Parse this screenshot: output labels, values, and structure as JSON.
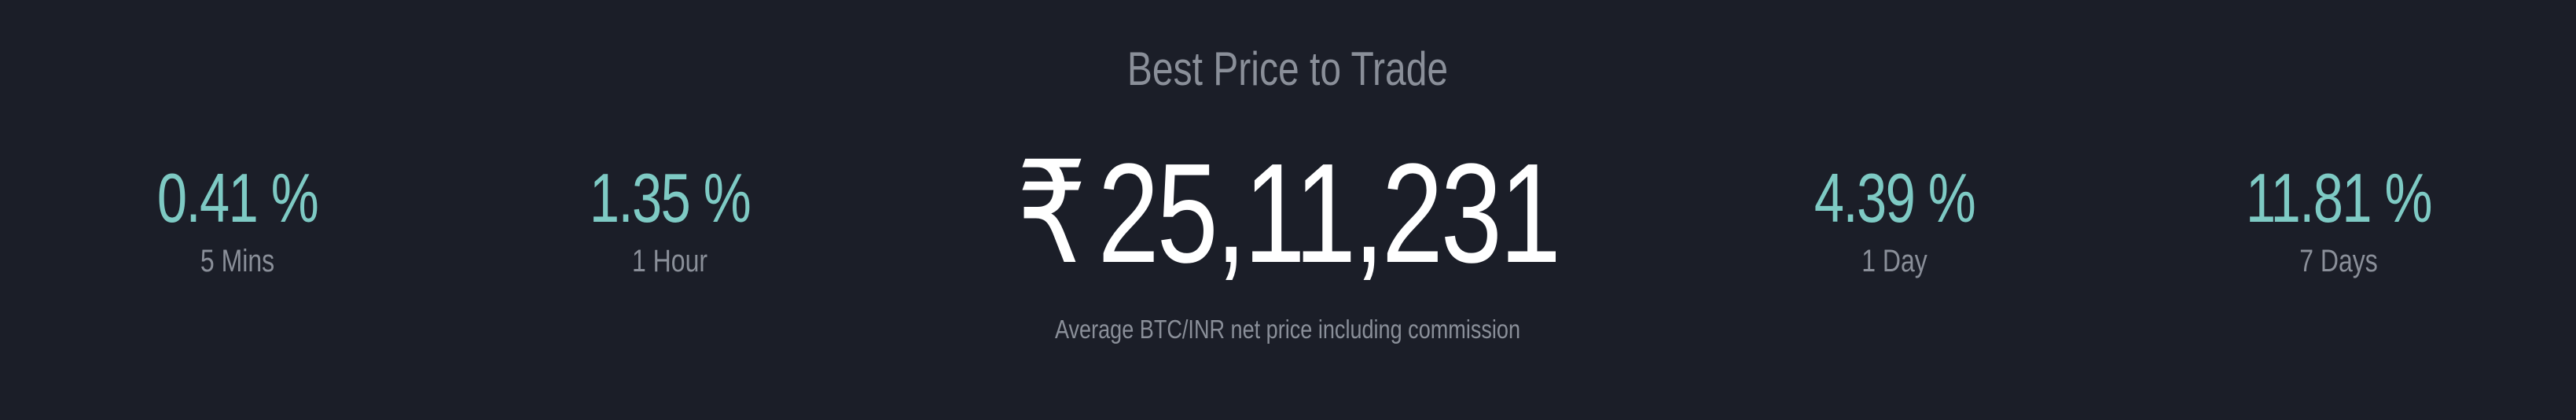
{
  "header": {
    "title": "Best Price to Trade"
  },
  "price": {
    "currency_symbol": "₹",
    "value": "25,11,231",
    "caption": "Average BTC/INR net price including commission"
  },
  "stats": [
    {
      "value": "0.41 %",
      "label": "5 Mins"
    },
    {
      "value": "1.35 %",
      "label": "1 Hour"
    },
    {
      "value": "4.39 %",
      "label": "1 Day"
    },
    {
      "value": "11.81 %",
      "label": "7 Days"
    }
  ],
  "colors": {
    "background": "#1b1e28",
    "accent": "#7ecac4",
    "primary_text": "#ffffff",
    "muted_text": "#8a8f99"
  }
}
